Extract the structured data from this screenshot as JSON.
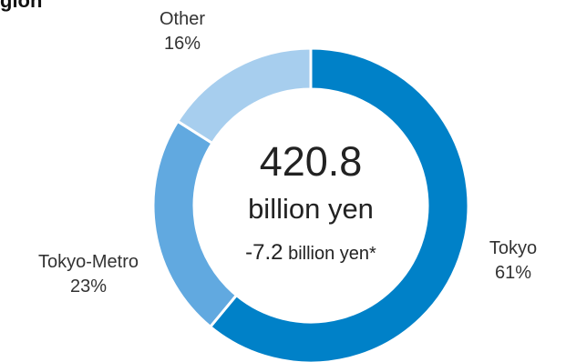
{
  "heading_fragment": "gion",
  "chart_data": {
    "type": "pie",
    "style": "donut",
    "categories": [
      "Tokyo",
      "Tokyo-Metro",
      "Other"
    ],
    "values": [
      61,
      23,
      16
    ],
    "value_labels": [
      "61%",
      "23%",
      "16%"
    ],
    "colors": [
      "#0081C8",
      "#61A9E0",
      "#A7CEEE"
    ],
    "start": "12 o'clock",
    "direction": "clockwise",
    "center": {
      "value": "420.8",
      "unit": "billion yen",
      "change_number": "-7.2",
      "change_suffix": "billion yen*"
    }
  }
}
